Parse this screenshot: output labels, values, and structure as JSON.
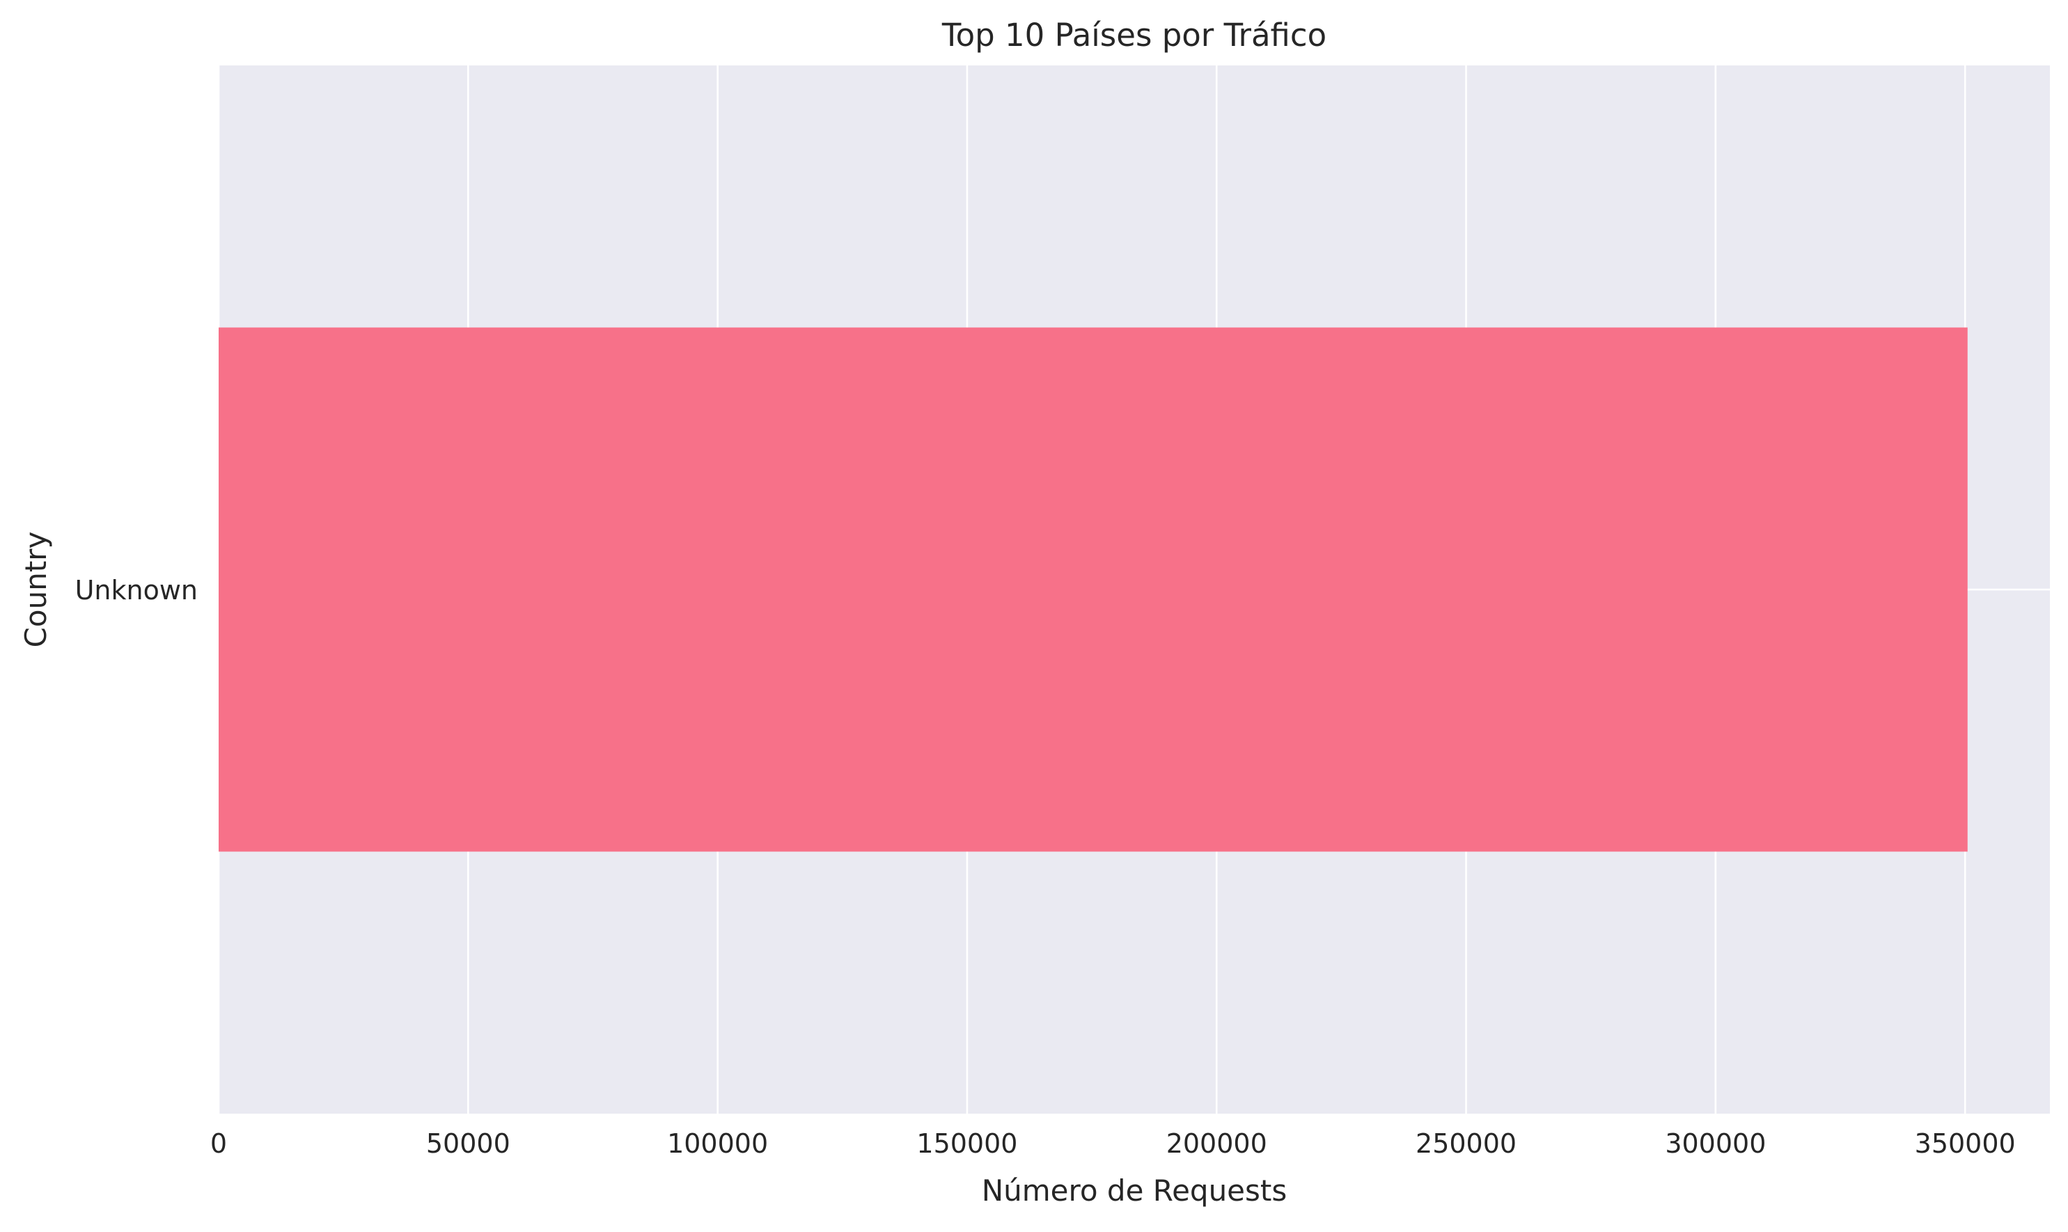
{
  "chart_data": {
    "type": "bar",
    "orientation": "horizontal",
    "title": "Top 10 Países por Tráfico",
    "xlabel": "Número de Requests",
    "ylabel": "Country",
    "categories": [
      "Unknown"
    ],
    "values": [
      350500
    ],
    "xlim": [
      0,
      367000
    ],
    "xticks": [
      0,
      50000,
      100000,
      150000,
      200000,
      250000,
      300000,
      350000
    ],
    "xtick_labels": [
      "0",
      "50000",
      "100000",
      "150000",
      "200000",
      "250000",
      "300000",
      "350000"
    ],
    "grid": true,
    "legend": "none",
    "colors": {
      "bar": "#f77189",
      "plot_background": "#eaeaf2",
      "grid": "#ffffff",
      "text": "#262626"
    }
  }
}
